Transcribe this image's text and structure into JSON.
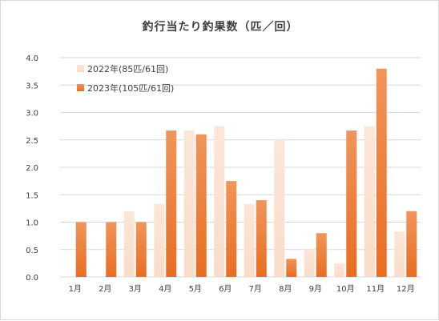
{
  "chart_data": {
    "type": "bar",
    "title": "釣行当たり釣果数（匹／回）",
    "categories": [
      "1月",
      "2月",
      "3月",
      "4月",
      "5月",
      "6月",
      "7月",
      "8月",
      "9月",
      "10月",
      "11月",
      "12月"
    ],
    "series": [
      {
        "name": "2022年(85匹/61回)",
        "color": "#fbe1d0",
        "values": [
          0,
          0,
          1.2,
          1.33,
          2.67,
          2.75,
          1.33,
          2.5,
          0.5,
          0.25,
          2.75,
          0.83
        ]
      },
      {
        "name": "2023年(105匹/61回)",
        "color": "#ed7d31",
        "values": [
          1.0,
          1.0,
          1.0,
          2.67,
          2.6,
          1.75,
          1.4,
          0.33,
          0.8,
          2.67,
          3.8,
          1.2
        ]
      }
    ],
    "yticks": [
      "0.0",
      "0.5",
      "1.0",
      "1.5",
      "2.0",
      "2.5",
      "3.0",
      "3.5",
      "4.0"
    ],
    "ylim": [
      0,
      4
    ],
    "grid": true,
    "legend": "top-left"
  }
}
